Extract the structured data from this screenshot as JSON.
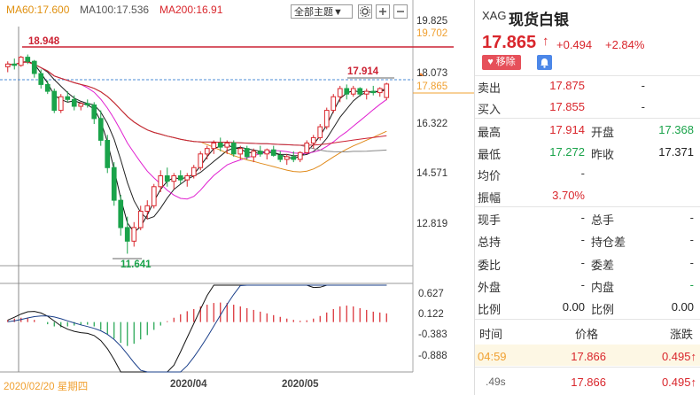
{
  "legend": {
    "ma60": "MA60:17.600",
    "ma100": "MA100:17.536",
    "ma200": "MA200:16.91"
  },
  "toolbar": {
    "theme_select": "全部主题▼"
  },
  "price_axis": [
    "19.825",
    "18.073",
    "16.322",
    "14.571",
    "12.819"
  ],
  "macd_axis": [
    "0.627",
    "0.122",
    "-0.383",
    "-0.888"
  ],
  "markers": {
    "high_line": "18.948",
    "last_high": "17.914",
    "low": "11.641",
    "right_tag_orange": "19.702",
    "right_tag_current": "17.865"
  },
  "x_axis": {
    "date_cursor": "2020/02/20 星期四",
    "ticks": [
      "2020/04",
      "2020/05"
    ]
  },
  "chart_data": {
    "type": "candlestick",
    "ylim": [
      11.2,
      20.3
    ],
    "macd_ylim": [
      -1.15,
      0.85
    ],
    "candles": [
      [
        18.5,
        18.7,
        18.3,
        18.6
      ],
      [
        18.6,
        18.8,
        18.4,
        18.55
      ],
      [
        18.55,
        18.9,
        18.5,
        18.85
      ],
      [
        18.85,
        18.95,
        18.6,
        18.7
      ],
      [
        18.7,
        18.75,
        18.1,
        18.25
      ],
      [
        18.25,
        18.4,
        17.7,
        17.85
      ],
      [
        17.85,
        18.0,
        17.5,
        17.6
      ],
      [
        17.6,
        17.7,
        16.8,
        16.9
      ],
      [
        16.9,
        17.5,
        16.8,
        17.4
      ],
      [
        17.4,
        17.6,
        17.2,
        17.3
      ],
      [
        17.3,
        17.45,
        16.9,
        17.05
      ],
      [
        17.05,
        17.2,
        16.9,
        17.15
      ],
      [
        17.15,
        17.3,
        17.0,
        17.1
      ],
      [
        17.1,
        17.2,
        16.4,
        16.6
      ],
      [
        16.6,
        16.9,
        15.6,
        15.8
      ],
      [
        15.8,
        16.0,
        14.6,
        14.8
      ],
      [
        14.8,
        15.0,
        13.4,
        13.6
      ],
      [
        13.6,
        13.8,
        12.3,
        12.6
      ],
      [
        12.6,
        13.0,
        11.64,
        12.1
      ],
      [
        12.1,
        12.8,
        11.9,
        12.6
      ],
      [
        12.6,
        13.4,
        12.5,
        13.2
      ],
      [
        13.2,
        13.6,
        12.9,
        13.4
      ],
      [
        13.4,
        14.2,
        13.3,
        14.1
      ],
      [
        14.1,
        14.7,
        13.9,
        14.5
      ],
      [
        14.5,
        14.8,
        14.1,
        14.3
      ],
      [
        14.3,
        14.6,
        14.0,
        14.5
      ],
      [
        14.5,
        14.7,
        14.2,
        14.35
      ],
      [
        14.35,
        14.6,
        14.1,
        14.5
      ],
      [
        14.5,
        14.9,
        14.4,
        14.8
      ],
      [
        14.8,
        15.4,
        14.7,
        15.3
      ],
      [
        15.3,
        15.6,
        15.1,
        15.5
      ],
      [
        15.5,
        15.8,
        15.3,
        15.7
      ],
      [
        15.7,
        15.9,
        15.4,
        15.55
      ],
      [
        15.55,
        15.8,
        15.3,
        15.7
      ],
      [
        15.7,
        15.8,
        15.2,
        15.3
      ],
      [
        15.3,
        15.6,
        15.1,
        15.5
      ],
      [
        15.5,
        15.6,
        15.1,
        15.2
      ],
      [
        15.2,
        15.5,
        15.0,
        15.4
      ],
      [
        15.4,
        15.6,
        15.2,
        15.3
      ],
      [
        15.3,
        15.5,
        15.1,
        15.45
      ],
      [
        15.45,
        15.6,
        15.2,
        15.25
      ],
      [
        15.25,
        15.4,
        15.0,
        15.1
      ],
      [
        15.1,
        15.3,
        14.9,
        15.2
      ],
      [
        15.2,
        15.4,
        15.0,
        15.1
      ],
      [
        15.1,
        15.4,
        15.0,
        15.35
      ],
      [
        15.35,
        15.8,
        15.3,
        15.7
      ],
      [
        15.7,
        16.0,
        15.5,
        15.9
      ],
      [
        15.9,
        16.4,
        15.8,
        16.3
      ],
      [
        16.3,
        17.0,
        16.2,
        16.9
      ],
      [
        16.9,
        17.5,
        16.8,
        17.4
      ],
      [
        17.4,
        17.8,
        17.2,
        17.7
      ],
      [
        17.7,
        17.85,
        17.3,
        17.5
      ],
      [
        17.5,
        17.8,
        17.4,
        17.7
      ],
      [
        17.7,
        17.75,
        17.4,
        17.5
      ],
      [
        17.5,
        17.7,
        17.3,
        17.6
      ],
      [
        17.6,
        17.8,
        17.45,
        17.55
      ],
      [
        17.55,
        17.75,
        17.4,
        17.7
      ],
      [
        17.37,
        17.914,
        17.272,
        17.865
      ]
    ],
    "macd_hist": [
      0.05,
      0.08,
      0.1,
      0.09,
      0.05,
      0.0,
      -0.05,
      -0.1,
      -0.12,
      -0.1,
      -0.08,
      -0.07,
      -0.06,
      -0.1,
      -0.18,
      -0.28,
      -0.38,
      -0.48,
      -0.55,
      -0.5,
      -0.4,
      -0.3,
      -0.18,
      -0.08,
      0.02,
      0.1,
      0.18,
      0.25,
      0.3,
      0.36,
      0.4,
      0.44,
      0.45,
      0.44,
      0.4,
      0.36,
      0.32,
      0.28,
      0.24,
      0.2,
      0.16,
      0.12,
      0.08,
      0.05,
      0.03,
      0.04,
      0.08,
      0.14,
      0.22,
      0.3,
      0.36,
      0.38,
      0.36,
      0.32,
      0.28,
      0.24,
      0.22,
      0.2
    ]
  },
  "panel": {
    "code": "XAG",
    "name": "现货白银",
    "price": "17.865",
    "arrow": "↑",
    "change": "+0.494",
    "change_pct": "+2.84%",
    "remove_label": "移除",
    "sell_label": "卖出",
    "sell_val": "17.875",
    "sell_vol": "-",
    "buy_label": "买入",
    "buy_val": "17.855",
    "buy_vol": "-",
    "high_label": "最高",
    "high_val": "17.914",
    "open_label": "开盘",
    "open_val": "17.368",
    "low_label": "最低",
    "low_val": "17.272",
    "prev_label": "昨收",
    "prev_val": "17.371",
    "avg_label": "均价",
    "avg_val": "-",
    "amp_label": "振幅",
    "amp_val": "3.70%",
    "cur_vol_label": "现手",
    "cur_vol_val": "-",
    "total_vol_label": "总手",
    "total_vol_val": "-",
    "oi_label": "总持",
    "oi_val": "-",
    "oi_chg_label": "持仓差",
    "oi_chg_val": "-",
    "ratio_label": "委比",
    "ratio_val": "-",
    "diff_label": "委差",
    "diff_val": "-",
    "outer_label": "外盘",
    "outer_val": "-",
    "inner_label": "内盘",
    "inner_val": "-",
    "pct1_label": "比例",
    "pct1_val": "0.00",
    "pct2_label": "比例",
    "pct2_val": "0.00",
    "ticks_head": {
      "time": "时间",
      "price": "价格",
      "change": "涨跌"
    },
    "ticks": [
      {
        "time": "04:59",
        "price": "17.866",
        "change": "0.495↑"
      },
      {
        "time": ".49s",
        "price": "17.866",
        "change": "0.495↑"
      }
    ]
  }
}
